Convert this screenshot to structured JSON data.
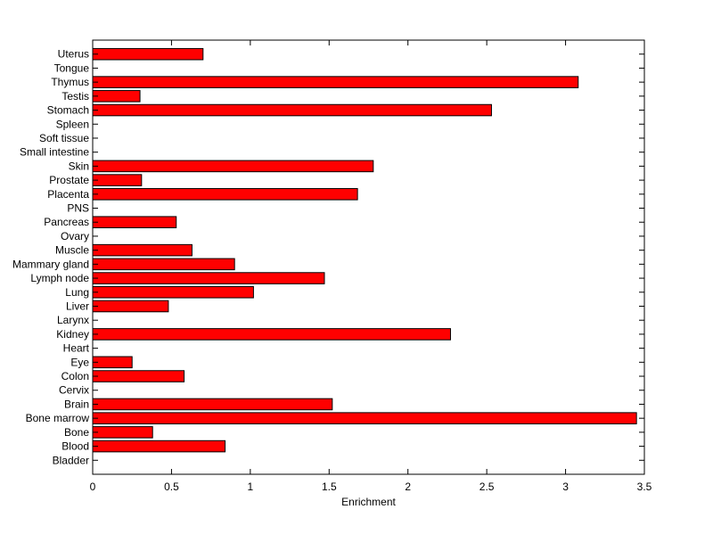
{
  "chart_data": {
    "type": "bar",
    "orientation": "horizontal",
    "title": "",
    "xlabel": "Enrichment",
    "ylabel": "",
    "xlim": [
      0,
      3.5
    ],
    "x_ticks": [
      0,
      0.5,
      1,
      1.5,
      2,
      2.5,
      3,
      3.5
    ],
    "x_tick_labels": [
      "0",
      "0.5",
      "1",
      "1.5",
      "2",
      "2.5",
      "3",
      "3.5"
    ],
    "grid": false,
    "bar_color": "#ff0000",
    "edge_color": "#000000",
    "categories": [
      "Bladder",
      "Blood",
      "Bone",
      "Bone marrow",
      "Brain",
      "Cervix",
      "Colon",
      "Eye",
      "Heart",
      "Kidney",
      "Larynx",
      "Liver",
      "Lung",
      "Lymph node",
      "Mammary gland",
      "Muscle",
      "Ovary",
      "Pancreas",
      "PNS",
      "Placenta",
      "Prostate",
      "Skin",
      "Small intestine",
      "Soft tissue",
      "Spleen",
      "Stomach",
      "Testis",
      "Thymus",
      "Tongue",
      "Uterus"
    ],
    "values": [
      0,
      0.84,
      0.38,
      3.45,
      1.52,
      0,
      0.58,
      0.25,
      0,
      2.27,
      0,
      0.48,
      1.02,
      1.47,
      0.9,
      0.63,
      0,
      0.53,
      0,
      1.68,
      0.31,
      1.78,
      0,
      0,
      0,
      2.53,
      0.3,
      3.08,
      0,
      0.7
    ]
  }
}
